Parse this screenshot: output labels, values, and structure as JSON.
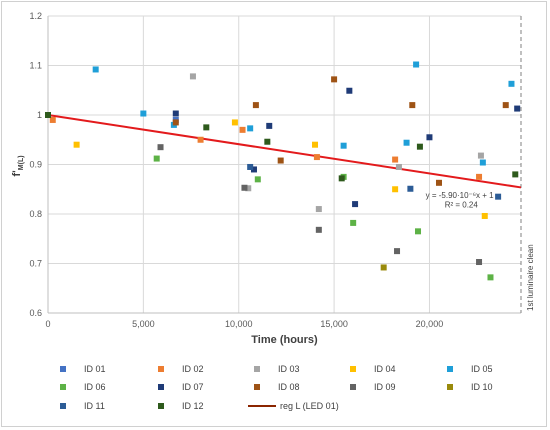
{
  "chart_data": {
    "type": "scatter",
    "xlabel": "Time (hours)",
    "ylabel_main": "f'",
    "ylabel_sub": "M(L)",
    "xlim": [
      0,
      24800
    ],
    "ylim": [
      0.6,
      1.2
    ],
    "x_ticks": [
      0,
      5000,
      10000,
      15000,
      20000
    ],
    "x_tick_labels": [
      "0",
      "5,000",
      "10,000",
      "15,000",
      "20,000"
    ],
    "y_ticks": [
      0.6,
      0.7,
      0.8,
      0.9,
      1.0,
      1.1,
      1.2
    ],
    "y_tick_labels": [
      "0.6",
      "0.7",
      "0.8",
      "0.9",
      "1",
      "1.1",
      "1.2"
    ],
    "grid": "vertical and horizontal",
    "legend_position": "bottom",
    "vertical_marker": {
      "x": 24800,
      "label": "1st luminaire clean"
    },
    "regression": {
      "name": "reg L (LED 01)",
      "slope": -5.9e-06,
      "intercept": 1,
      "color": "#e31a1c",
      "equation_text": "y = -5.90·10⁻⁶x + 1",
      "r2_text": "R² = 0.24"
    },
    "series": [
      {
        "name": "ID 01",
        "color": "#4472c4",
        "points": [
          [
            0,
            1.0
          ],
          [
            6700,
            0.99
          ]
        ]
      },
      {
        "name": "ID 02",
        "color": "#ed7d31",
        "points": [
          [
            250,
            0.99
          ],
          [
            8000,
            0.95
          ],
          [
            10200,
            0.97
          ],
          [
            14100,
            0.915
          ],
          [
            18200,
            0.91
          ],
          [
            22600,
            0.875
          ]
        ]
      },
      {
        "name": "ID 03",
        "color": "#a5a5a5",
        "points": [
          [
            7600,
            1.078
          ],
          [
            10500,
            0.852
          ],
          [
            14200,
            0.81
          ],
          [
            18400,
            0.895
          ],
          [
            22700,
            0.918
          ]
        ]
      },
      {
        "name": "ID 04",
        "color": "#ffc000",
        "points": [
          [
            1500,
            0.94
          ],
          [
            9800,
            0.985
          ],
          [
            14000,
            0.94
          ],
          [
            18200,
            0.85
          ],
          [
            22900,
            0.796
          ]
        ]
      },
      {
        "name": "ID 05",
        "color": "#1f9fd8",
        "points": [
          [
            2500,
            1.092
          ],
          [
            5000,
            1.003
          ],
          [
            6600,
            0.98
          ],
          [
            10600,
            0.973
          ],
          [
            15500,
            0.938
          ],
          [
            18800,
            0.944
          ],
          [
            19300,
            1.102
          ],
          [
            22800,
            0.904
          ],
          [
            24300,
            1.063
          ]
        ]
      },
      {
        "name": "ID 06",
        "color": "#5db246",
        "points": [
          [
            5700,
            0.912
          ],
          [
            11000,
            0.87
          ],
          [
            15500,
            0.875
          ],
          [
            16000,
            0.782
          ],
          [
            19400,
            0.765
          ],
          [
            23200,
            0.672
          ]
        ]
      },
      {
        "name": "ID 07",
        "color": "#1f3b77",
        "points": [
          [
            6700,
            1.003
          ],
          [
            10800,
            0.89
          ],
          [
            11600,
            0.978
          ],
          [
            15800,
            1.049
          ],
          [
            16100,
            0.82
          ],
          [
            20000,
            0.955
          ],
          [
            24600,
            1.013
          ]
        ]
      },
      {
        "name": "ID 08",
        "color": "#9e5315",
        "points": [
          [
            6700,
            0.985
          ],
          [
            10900,
            1.02
          ],
          [
            12200,
            0.908
          ],
          [
            15000,
            1.072
          ],
          [
            19100,
            1.02
          ],
          [
            20500,
            0.863
          ],
          [
            24000,
            1.02
          ]
        ]
      },
      {
        "name": "ID 09",
        "color": "#636363",
        "points": [
          [
            5900,
            0.935
          ],
          [
            10300,
            0.853
          ],
          [
            14200,
            0.768
          ],
          [
            18300,
            0.725
          ],
          [
            22600,
            0.703
          ]
        ]
      },
      {
        "name": "ID 10",
        "color": "#998a0c",
        "points": [
          [
            17600,
            0.692
          ]
        ]
      },
      {
        "name": "ID 11",
        "color": "#2c5c96",
        "points": [
          [
            10600,
            0.895
          ],
          [
            19000,
            0.851
          ],
          [
            23600,
            0.835
          ]
        ]
      },
      {
        "name": "ID 12",
        "color": "#2e5a1c",
        "points": [
          [
            0,
            1.0
          ],
          [
            8300,
            0.975
          ],
          [
            11500,
            0.946
          ],
          [
            15400,
            0.872
          ],
          [
            19500,
            0.936
          ],
          [
            24500,
            0.88
          ]
        ]
      }
    ]
  }
}
